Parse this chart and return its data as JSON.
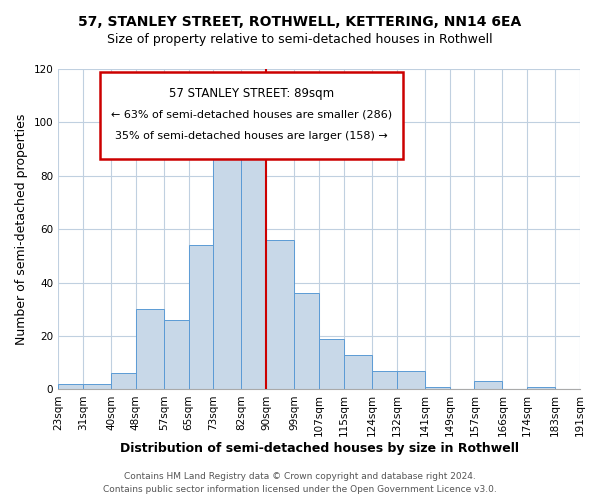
{
  "title": "57, STANLEY STREET, ROTHWELL, KETTERING, NN14 6EA",
  "subtitle": "Size of property relative to semi-detached houses in Rothwell",
  "xlabel": "Distribution of semi-detached houses by size in Rothwell",
  "ylabel": "Number of semi-detached properties",
  "property_label": "57 STANLEY STREET: 89sqm",
  "pct_smaller": 63,
  "pct_smaller_count": 286,
  "pct_larger": 35,
  "pct_larger_count": 158,
  "bin_labels": [
    "23sqm",
    "31sqm",
    "40sqm",
    "48sqm",
    "57sqm",
    "65sqm",
    "73sqm",
    "82sqm",
    "90sqm",
    "99sqm",
    "107sqm",
    "115sqm",
    "124sqm",
    "132sqm",
    "141sqm",
    "149sqm",
    "157sqm",
    "166sqm",
    "174sqm",
    "183sqm",
    "191sqm"
  ],
  "bin_edges": [
    23,
    31,
    40,
    48,
    57,
    65,
    73,
    82,
    90,
    99,
    107,
    115,
    124,
    132,
    141,
    149,
    157,
    166,
    174,
    183,
    191
  ],
  "bar_heights": [
    2,
    2,
    6,
    30,
    26,
    54,
    91,
    97,
    56,
    36,
    19,
    13,
    7,
    7,
    1,
    0,
    3,
    0,
    1,
    0
  ],
  "bar_color": "#c8d8e8",
  "bar_edge_color": "#5b9bd5",
  "vline_x": 90,
  "vline_color": "#cc0000",
  "ylim": [
    0,
    120
  ],
  "yticks": [
    0,
    20,
    40,
    60,
    80,
    100,
    120
  ],
  "footer_line1": "Contains HM Land Registry data © Crown copyright and database right 2024.",
  "footer_line2": "Contains public sector information licensed under the Open Government Licence v3.0.",
  "background_color": "#ffffff",
  "grid_color": "#c0d0e0",
  "title_fontsize": 10,
  "subtitle_fontsize": 9,
  "axis_label_fontsize": 9,
  "tick_fontsize": 7.5,
  "footer_fontsize": 6.5
}
